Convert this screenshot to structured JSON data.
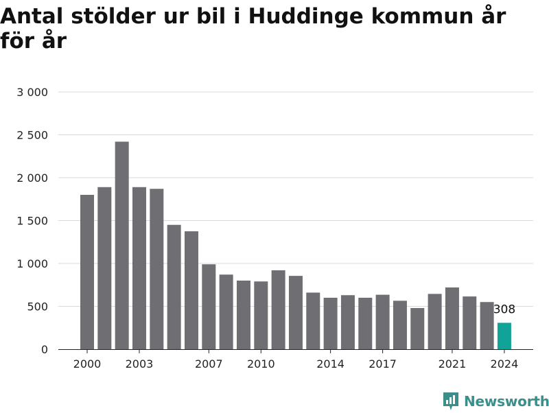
{
  "title": "Antal stölder ur bil i Huddinge kommun år för år",
  "brand": {
    "name": "Newsworthy",
    "icon": "newsworthy-logo-icon",
    "color": "#3a8f8b"
  },
  "chart_data": {
    "type": "bar",
    "title": "Antal stölder ur bil i Huddinge kommun år för år",
    "xlabel": "",
    "ylabel": "",
    "categories": [
      "2000",
      "2001",
      "2002",
      "2003",
      "2004",
      "2005",
      "2006",
      "2007",
      "2008",
      "2009",
      "2010",
      "2011",
      "2012",
      "2013",
      "2014",
      "2015",
      "2016",
      "2017",
      "2018",
      "2019",
      "2020",
      "2021",
      "2022",
      "2023",
      "2024"
    ],
    "values": [
      1800,
      1890,
      2420,
      1890,
      1870,
      1450,
      1375,
      990,
      870,
      800,
      790,
      920,
      855,
      660,
      600,
      630,
      600,
      635,
      565,
      480,
      645,
      720,
      615,
      550,
      308
    ],
    "x_tick_labels": [
      "2000",
      "2003",
      "2007",
      "2010",
      "2014",
      "2017",
      "2021",
      "2024"
    ],
    "y_tick_labels": [
      "0",
      "500",
      "1 000",
      "1 500",
      "2 000",
      "2 500",
      "3 000"
    ],
    "ylim": [
      0,
      3000
    ],
    "grid": true,
    "data_labels": [
      {
        "category": "2024",
        "text": "308"
      }
    ],
    "colors": {
      "bar": "#6f6e73",
      "highlight": "#12a398",
      "grid": "#d9d9d9",
      "axis": "#222222"
    }
  }
}
